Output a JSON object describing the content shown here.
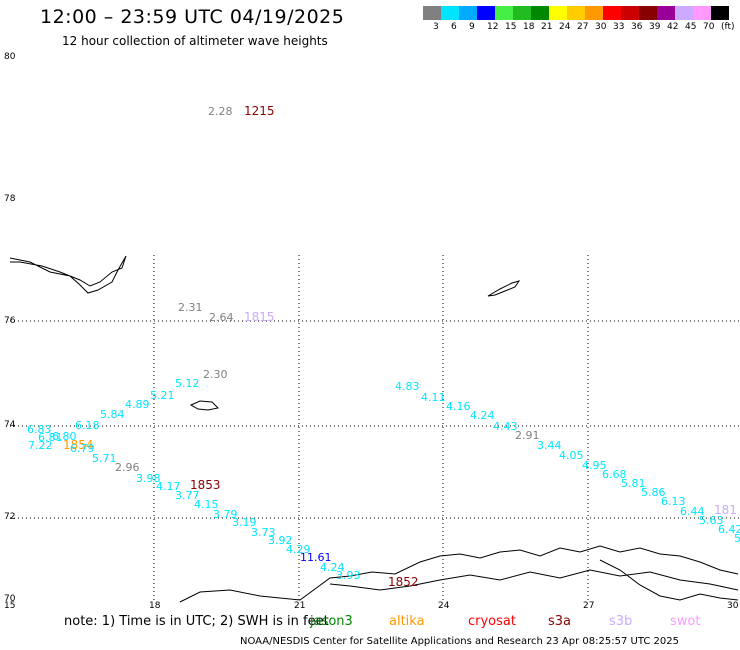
{
  "header": {
    "title": "12:00 – 23:59 UTC 04/19/2025",
    "subtitle": "12 hour collection of altimeter wave heights"
  },
  "colorbar": {
    "colors": [
      "#808080",
      "#00e5ff",
      "#00aaff",
      "#0000ff",
      "#44ee44",
      "#22bb22",
      "#008800",
      "#ffff00",
      "#ffcc00",
      "#ff9900",
      "#ff0000",
      "#cc0000",
      "#880000",
      "#990099",
      "#ccaaff",
      "#ff99ff",
      "#000000"
    ],
    "labels": [
      "3",
      "6",
      "9",
      "12",
      "15",
      "18",
      "21",
      "24",
      "27",
      "30",
      "33",
      "36",
      "39",
      "42",
      "45",
      "70",
      "(ft)"
    ]
  },
  "axes": {
    "lat_labels": [
      "80",
      "78",
      "76",
      "74",
      "72",
      "70"
    ],
    "lon_labels": [
      "15",
      "18",
      "21",
      "24",
      "27",
      "30"
    ]
  },
  "observations": [
    {
      "text": "2.28",
      "color": "#808080"
    },
    {
      "text": "1215",
      "color": "#880000"
    },
    {
      "text": "2.31",
      "color": "#808080"
    },
    {
      "text": "2.64",
      "color": "#808080"
    },
    {
      "text": "1815",
      "color": "#ccaaff"
    },
    {
      "text": "2.30",
      "color": "#808080"
    },
    {
      "text": "5.12",
      "color": "#00e5ff"
    },
    {
      "text": "5.21",
      "color": "#00e5ff"
    },
    {
      "text": "4.89",
      "color": "#00e5ff"
    },
    {
      "text": "5.84",
      "color": "#00e5ff"
    },
    {
      "text": "6.18",
      "color": "#00e5ff"
    },
    {
      "text": "6.83",
      "color": "#00e5ff"
    },
    {
      "text": "6.80",
      "color": "#00e5ff"
    },
    {
      "text": "6.81",
      "color": "#00e5ff"
    },
    {
      "text": "7.22",
      "color": "#00e5ff"
    },
    {
      "text": "1854",
      "color": "#ff9900"
    },
    {
      "text": "6.79",
      "color": "#00e5ff"
    },
    {
      "text": "5.71",
      "color": "#00e5ff"
    },
    {
      "text": "2.96",
      "color": "#808080"
    },
    {
      "text": "3.98",
      "color": "#00e5ff"
    },
    {
      "text": "4.17",
      "color": "#00e5ff"
    },
    {
      "text": "1853",
      "color": "#880000"
    },
    {
      "text": "3.77",
      "color": "#00e5ff"
    },
    {
      "text": "4.15",
      "color": "#00e5ff"
    },
    {
      "text": "3.79",
      "color": "#00e5ff"
    },
    {
      "text": "3.19",
      "color": "#00e5ff"
    },
    {
      "text": "3.73",
      "color": "#00e5ff"
    },
    {
      "text": "3.92",
      "color": "#00e5ff"
    },
    {
      "text": "4.29",
      "color": "#00e5ff"
    },
    {
      "text": "11.61",
      "color": "#0000ff"
    },
    {
      "text": "4.24",
      "color": "#00e5ff"
    },
    {
      "text": "3.93",
      "color": "#00e5ff"
    },
    {
      "text": "1852",
      "color": "#880000"
    },
    {
      "text": "4.83",
      "color": "#00e5ff"
    },
    {
      "text": "4.11",
      "color": "#00e5ff"
    },
    {
      "text": "4.16",
      "color": "#00e5ff"
    },
    {
      "text": "4.24",
      "color": "#00e5ff"
    },
    {
      "text": "4.43",
      "color": "#00e5ff"
    },
    {
      "text": "2.91",
      "color": "#808080"
    },
    {
      "text": "3.44",
      "color": "#00e5ff"
    },
    {
      "text": "4.05",
      "color": "#00e5ff"
    },
    {
      "text": "4.95",
      "color": "#00e5ff"
    },
    {
      "text": "6.68",
      "color": "#00e5ff"
    },
    {
      "text": "5.81",
      "color": "#00e5ff"
    },
    {
      "text": "5.86",
      "color": "#00e5ff"
    },
    {
      "text": "6.13",
      "color": "#00e5ff"
    },
    {
      "text": "6.44",
      "color": "#00e5ff"
    },
    {
      "text": "5.63",
      "color": "#00e5ff"
    },
    {
      "text": "181",
      "color": "#ccaaff"
    },
    {
      "text": "6.42",
      "color": "#00e5ff"
    },
    {
      "text": "5",
      "color": "#00e5ff"
    }
  ],
  "footer": {
    "note": "note:  1) Time is in UTC;  2) SWH is in feet",
    "satellites": [
      {
        "name": "jason3",
        "color": "#008800"
      },
      {
        "name": "altika",
        "color": "#ff9900"
      },
      {
        "name": "cryosat",
        "color": "#ff0000"
      },
      {
        "name": "s3a",
        "color": "#880000"
      },
      {
        "name": "s3b",
        "color": "#ccaaff"
      },
      {
        "name": "swot",
        "color": "#ff99ff"
      }
    ],
    "credit": "NOAA/NESDIS Center for Satellite Applications and Research     23 Apr 08:25:57 UTC 2025"
  }
}
